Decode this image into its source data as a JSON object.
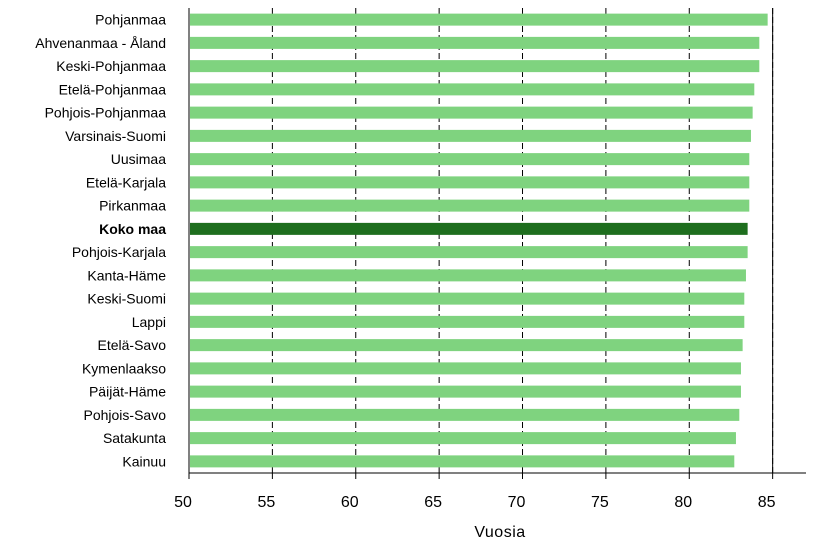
{
  "chart_data": {
    "type": "bar",
    "orientation": "horizontal",
    "categories": [
      "Pohjanmaa",
      "Ahvenanmaa - Åland",
      "Keski-Pohjanmaa",
      "Etelä-Pohjanmaa",
      "Pohjois-Pohjanmaa",
      "Varsinais-Suomi",
      "Uusimaa",
      "Etelä-Karjala",
      "Pirkanmaa",
      "Koko maa",
      "Pohjois-Karjala",
      "Kanta-Häme",
      "Keski-Suomi",
      "Lappi",
      "Etelä-Savo",
      "Kymenlaakso",
      "Päijät-Häme",
      "Pohjois-Savo",
      "Satakunta",
      "Kainuu"
    ],
    "values": [
      84.7,
      84.2,
      84.2,
      83.9,
      83.8,
      83.7,
      83.6,
      83.6,
      83.6,
      83.5,
      83.5,
      83.4,
      83.3,
      83.3,
      83.2,
      83.1,
      83.1,
      83.0,
      82.8,
      82.7
    ],
    "highlight": "Koko maa",
    "xlabel": "Vuosia",
    "xlim": [
      50,
      87
    ],
    "xticks": [
      "50",
      "55",
      "60",
      "65",
      "70",
      "75",
      "80",
      "85"
    ],
    "xtick_values": [
      50,
      55,
      60,
      65,
      70,
      75,
      80,
      85
    ],
    "grid": "vertical-dashed",
    "colors": {
      "bar": "#7fd37f",
      "highlight_bar": "#1e6e1e",
      "grid": "#000000",
      "axis": "#000000"
    }
  }
}
